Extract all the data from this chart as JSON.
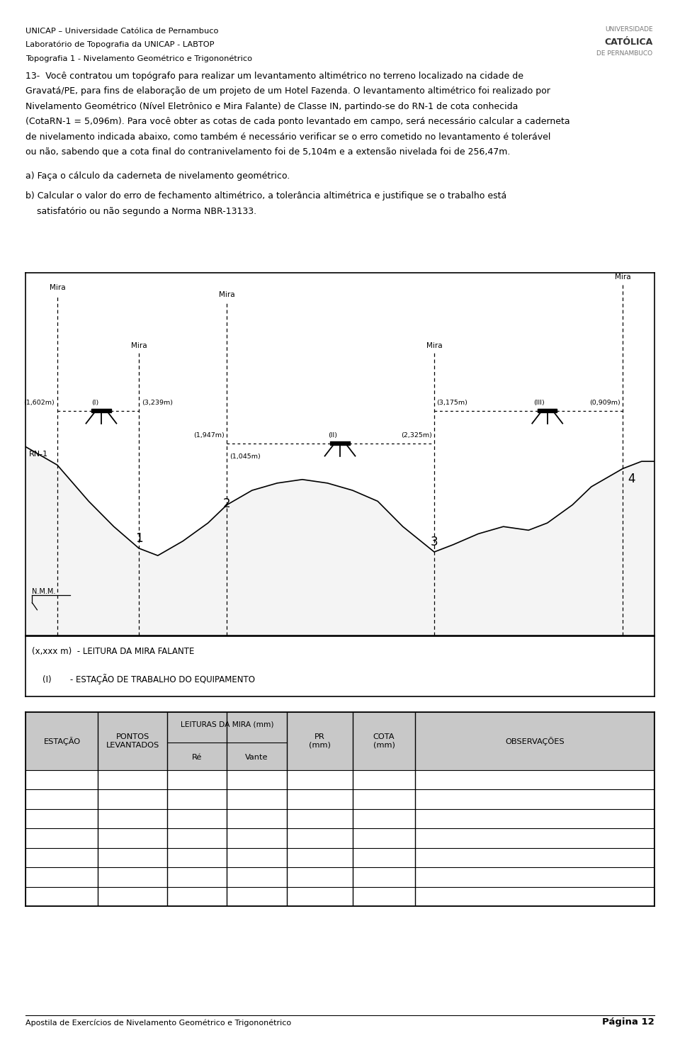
{
  "header_lines": [
    "UNICAP – Universidade Católica de Pernambuco",
    "Laboratório de Topografia da UNICAP - LABTOP",
    "Topografia 1 - Nivelamento Geométrico e Trigononétrico"
  ],
  "body_text_lines": [
    "13-  Você contratou um topógrafo para realizar um levantamento altimétrico no terreno localizado na cidade de",
    "Gravatá/PE, para fins de elaboração de um projeto de um Hotel Fazenda. O levantamento altimétrico foi realizado por",
    "Nivelamento Geométrico (Nível Eletrônico e Mira Falante) de Classe IN, partindo-se do RN-1 de cota conhecida",
    "(CotaRN-1 = 5,096m). Para você obter as cotas de cada ponto levantado em campo, será necessário calcular a caderneta",
    "de nivelamento indicada abaixo, como também é necessário verificar se o erro cometido no levantamento é tolerável",
    "ou não, sabendo que a cota final do contranivelamento foi de 5,104m e a extensão nivelada foi de 256,47m."
  ],
  "sub_a": "a) Faça o cálculo da caderneta de nivelamento geométrico.",
  "sub_b": "b) Calcular o valor do erro de fechamento altimétrico, a tolerância altimétrica e justifique se o trabalho está",
  "sub_b2": "    satisfatório ou não segundo a Norma NBR-13133.",
  "footer_left": "Apostila de Exercícios de Nivelamento Geométrico e Trigononétrico",
  "footer_right": "Página 12",
  "legend1": "(x,xxx m)  - LEITURA DA MIRA FALANTE",
  "legend2": "    (I)       - ESTAÇÃO DE TRABALHO DO EQUIPAMENTO",
  "num_data_rows": 7,
  "bg_color": "#ffffff",
  "text_color": "#000000",
  "table_header_bg": "#c8c8c8"
}
